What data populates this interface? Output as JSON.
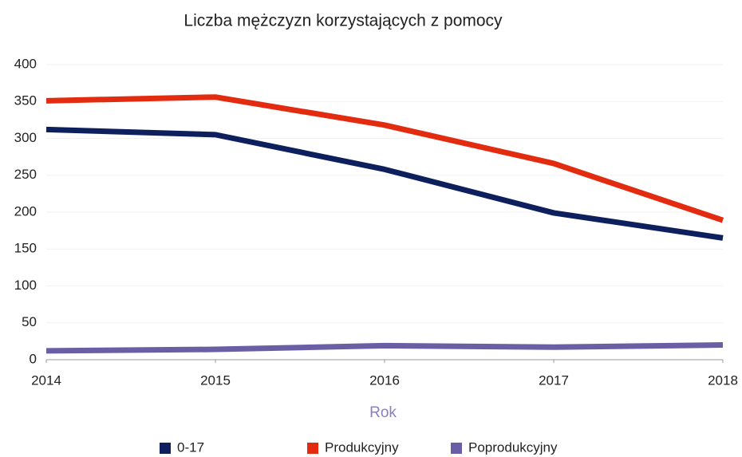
{
  "chart_data": {
    "type": "line",
    "title": "Liczba mężczyzn korzystających z pomocy",
    "x_label": "Rok",
    "x": [
      2014,
      2015,
      2016,
      2017,
      2018
    ],
    "xlim": [
      2014,
      2018
    ],
    "xticks": [
      2014,
      2015,
      2016,
      2017,
      2018
    ],
    "ylim": [
      0,
      400
    ],
    "yticks": [
      0,
      50,
      100,
      150,
      200,
      250,
      300,
      350,
      400
    ],
    "grid": true,
    "legend": "bottom",
    "series": [
      {
        "name": "0-17",
        "color": "#0d1f5c",
        "values": [
          312,
          305,
          258,
          199,
          165
        ]
      },
      {
        "name": "Produkcyjny",
        "color": "#e32b10",
        "values": [
          351,
          356,
          318,
          266,
          189
        ]
      },
      {
        "name": "Poprodukcyjny",
        "color": "#6a5fa4",
        "values": [
          12,
          14,
          19,
          17,
          20
        ]
      }
    ]
  }
}
